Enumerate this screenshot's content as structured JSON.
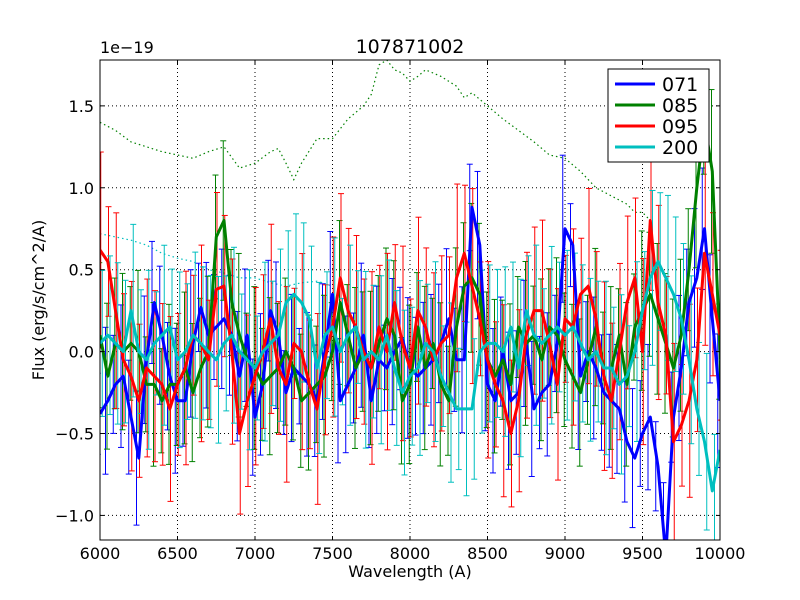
{
  "chart_data": {
    "type": "line",
    "title": "107871002",
    "xlabel": "Wavelength (A)",
    "ylabel": "Flux (erg/s/cm^2/A)",
    "offset_label": "1e−19",
    "xlim": [
      6000,
      10000
    ],
    "ylim": [
      -1.15,
      1.78
    ],
    "xticks": [
      6000,
      6500,
      7000,
      7500,
      8000,
      8500,
      9000,
      9500,
      10000
    ],
    "xtick_labels": [
      "6000",
      "6500",
      "7000",
      "7500",
      "8000",
      "8500",
      "9000",
      "9500",
      "10000"
    ],
    "yticks": [
      -1.0,
      -0.5,
      0.0,
      0.5,
      1.0,
      1.5
    ],
    "ytick_labels": [
      "−1.0",
      "−0.5",
      "0.0",
      "0.5",
      "1.0",
      "1.5"
    ],
    "grid": true,
    "legend_position": "top-right",
    "x": [
      6000,
      6050,
      6100,
      6150,
      6200,
      6250,
      6300,
      6350,
      6400,
      6450,
      6500,
      6550,
      6600,
      6650,
      6700,
      6750,
      6800,
      6850,
      6900,
      6950,
      7000,
      7050,
      7100,
      7150,
      7200,
      7250,
      7300,
      7350,
      7400,
      7450,
      7500,
      7550,
      7600,
      7650,
      7700,
      7750,
      7800,
      7850,
      7900,
      7950,
      8000,
      8050,
      8100,
      8150,
      8200,
      8250,
      8300,
      8350,
      8400,
      8450,
      8500,
      8550,
      8600,
      8650,
      8700,
      8750,
      8800,
      8850,
      8900,
      8950,
      9000,
      9050,
      9100,
      9150,
      9200,
      9250,
      9300,
      9350,
      9400,
      9450,
      9500,
      9550,
      9600,
      9650,
      9700,
      9750,
      9800,
      9850,
      9900,
      9950,
      10000
    ],
    "series": [
      {
        "name": "071",
        "color": "#0000ff",
        "values": [
          -0.38,
          -0.3,
          -0.2,
          -0.15,
          -0.4,
          -0.65,
          -0.05,
          0.3,
          0.1,
          -0.15,
          -0.3,
          -0.3,
          0.05,
          0.27,
          0.1,
          0.15,
          0.2,
          0.1,
          -0.15,
          0.1,
          -0.4,
          -0.2,
          0.25,
          0.1,
          -0.25,
          -0.1,
          -0.15,
          -0.2,
          -0.3,
          0.0,
          0.35,
          -0.3,
          -0.2,
          -0.1,
          0.1,
          -0.3,
          -0.05,
          -0.1,
          0.0,
          0.08,
          -0.1,
          -0.15,
          -0.1,
          -0.05,
          0.05,
          0.2,
          -0.05,
          -0.05,
          0.88,
          0.65,
          -0.2,
          -0.3,
          0.0,
          -0.3,
          -0.25,
          0.05,
          -0.35,
          -0.25,
          -0.2,
          0.05,
          0.75,
          0.65,
          -0.15,
          0.0,
          -0.1,
          -0.25,
          -0.3,
          -0.35,
          -0.55,
          -0.65,
          -0.5,
          -0.4,
          -0.7,
          -1.25,
          -0.4,
          -0.1,
          0.3,
          0.45,
          0.75,
          0.2,
          -0.3
        ]
      },
      {
        "name": "085",
        "color": "#008000",
        "values": [
          0.1,
          -0.15,
          0.05,
          0.0,
          0.05,
          0.0,
          -0.2,
          -0.2,
          -0.3,
          -0.2,
          -0.2,
          -0.1,
          -0.25,
          -0.1,
          0.0,
          0.7,
          0.8,
          0.3,
          0.1,
          -0.05,
          -0.1,
          -0.2,
          -0.15,
          -0.1,
          0.0,
          -0.1,
          -0.3,
          -0.25,
          -0.2,
          -0.15,
          0.0,
          0.3,
          0.1,
          -0.1,
          0.0,
          -0.1,
          0.05,
          0.2,
          0.1,
          -0.3,
          -0.2,
          0.15,
          -0.1,
          0.05,
          -0.2,
          -0.3,
          0.15,
          0.4,
          0.45,
          0.35,
          -0.05,
          -0.15,
          -0.05,
          -0.2,
          0.15,
          0.05,
          0.1,
          -0.05,
          0.15,
          0.1,
          -0.05,
          -0.15,
          -0.25,
          -0.05,
          0.15,
          -0.1,
          -0.1,
          0.1,
          -0.2,
          0.15,
          0.25,
          0.35,
          0.2,
          0.05,
          -0.1,
          0.1,
          0.5,
          1.0,
          1.4,
          1.1,
          0.0
        ]
      },
      {
        "name": "095",
        "color": "#ff0000",
        "values": [
          0.62,
          0.55,
          0.25,
          -0.05,
          -0.15,
          -0.3,
          -0.1,
          -0.15,
          -0.2,
          -0.35,
          -0.2,
          -0.1,
          0.1,
          0.05,
          -0.05,
          0.38,
          0.4,
          0.0,
          -0.5,
          -0.3,
          -0.15,
          0.0,
          0.2,
          -0.1,
          -0.2,
          0.05,
          0.0,
          -0.2,
          -0.35,
          -0.05,
          0.15,
          0.45,
          0.25,
          0.15,
          0.0,
          -0.1,
          0.15,
          0.0,
          0.3,
          0.05,
          -0.1,
          0.25,
          0.15,
          -0.05,
          0.05,
          0.1,
          0.45,
          0.6,
          0.4,
          0.2,
          -0.05,
          -0.2,
          -0.3,
          -0.5,
          -0.3,
          0.1,
          0.25,
          0.25,
          0.05,
          -0.2,
          0.2,
          0.15,
          0.35,
          0.4,
          0.2,
          -0.15,
          -0.3,
          0.0,
          0.3,
          0.45,
          0.0,
          0.8,
          0.3,
          0.1,
          -0.55,
          -0.45,
          -0.3,
          -0.05,
          0.6,
          0.35,
          0.1
        ]
      },
      {
        "name": "200",
        "color": "#00bfbf",
        "values": [
          0.05,
          0.1,
          0.05,
          0.0,
          0.25,
          0.0,
          -0.05,
          0.05,
          0.1,
          0.15,
          -0.05,
          0.0,
          0.1,
          0.05,
          0.0,
          -0.05,
          0.05,
          0.1,
          0.0,
          -0.05,
          -0.1,
          0.0,
          0.05,
          0.1,
          0.3,
          0.35,
          0.3,
          0.2,
          -0.1,
          0.1,
          0.15,
          0.0,
          0.1,
          0.15,
          -0.05,
          0.0,
          -0.05,
          0.1,
          -0.1,
          -0.25,
          -0.15,
          -0.1,
          0.05,
          0.0,
          -0.15,
          -0.25,
          -0.35,
          -0.35,
          -0.35,
          0.0,
          0.05,
          0.05,
          0.0,
          0.15,
          -0.1,
          0.25,
          0.1,
          0.05,
          0.1,
          0.15,
          0.1,
          0.15,
          0.05,
          -0.05,
          0.0,
          -0.1,
          -0.1,
          -0.2,
          -0.15,
          0.0,
          0.25,
          0.45,
          0.55,
          0.45,
          0.35,
          0.2,
          -0.05,
          -0.35,
          -0.55,
          -0.85,
          -0.6
        ]
      }
    ],
    "dotted_continuum": [
      {
        "name": "085 continuum",
        "color": "#008000",
        "x": [
          6000,
          6100,
          6200,
          6300,
          6400,
          6500,
          6600,
          6700,
          6800,
          6900,
          7000,
          7100,
          7150,
          7200,
          7250,
          7300,
          7400,
          7500,
          7600,
          7700,
          7750,
          7800,
          7850,
          7900,
          7950,
          8000,
          8050,
          8100,
          8150,
          8200,
          8300,
          8350,
          8400,
          8500,
          8600,
          8700,
          8800,
          8900,
          9000,
          9100,
          9200,
          9300,
          9400,
          9450,
          9500,
          9550
        ],
        "values": [
          1.4,
          1.35,
          1.28,
          1.25,
          1.22,
          1.2,
          1.18,
          1.22,
          1.25,
          1.12,
          1.15,
          1.22,
          1.24,
          1.15,
          1.05,
          1.15,
          1.3,
          1.3,
          1.42,
          1.5,
          1.57,
          1.75,
          1.78,
          1.72,
          1.7,
          1.65,
          1.68,
          1.72,
          1.7,
          1.68,
          1.62,
          1.55,
          1.58,
          1.5,
          1.42,
          1.35,
          1.28,
          1.2,
          1.18,
          1.1,
          1.0,
          0.95,
          0.9,
          0.85,
          0.85,
          0.8
        ]
      },
      {
        "name": "200 continuum",
        "color": "#00bfbf",
        "x": [
          6000,
          6100,
          6200,
          6300,
          6400,
          6500,
          6600,
          6700,
          6800,
          6900,
          7000,
          7100,
          7200,
          7300,
          7400,
          7500
        ],
        "values": [
          0.72,
          0.7,
          0.68,
          0.65,
          0.6,
          0.57,
          0.55,
          0.5,
          0.48,
          0.45,
          0.45,
          0.42,
          0.4,
          0.42,
          0.43,
          0.4
        ]
      }
    ]
  }
}
